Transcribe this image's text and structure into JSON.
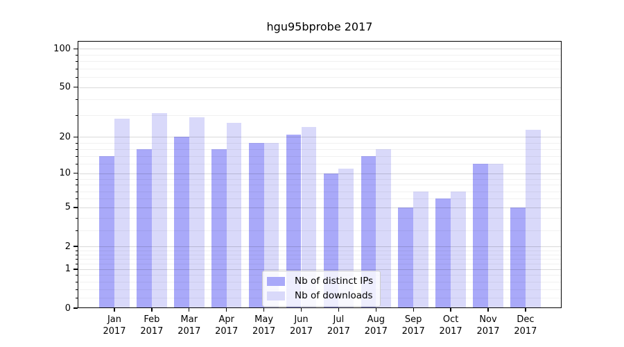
{
  "title": "hgu95bprobe 2017",
  "colors": {
    "distinct_ips": "#a9a9f9",
    "downloads": "#d9d9fa"
  },
  "legend": {
    "items": [
      {
        "label": "Nb of distinct IPs",
        "series": "distinct_ips"
      },
      {
        "label": "Nb of downloads",
        "series": "downloads"
      }
    ]
  },
  "chart_data": {
    "type": "bar",
    "title": "hgu95bprobe 2017",
    "year_label": "2017",
    "categories": [
      "Jan",
      "Feb",
      "Mar",
      "Apr",
      "May",
      "Jun",
      "Jul",
      "Aug",
      "Sep",
      "Oct",
      "Nov",
      "Dec"
    ],
    "series": [
      {
        "name": "Nb of distinct IPs",
        "color_key": "distinct_ips",
        "values": [
          14,
          16,
          20,
          16,
          18,
          21,
          10,
          14,
          5,
          6,
          12,
          5
        ]
      },
      {
        "name": "Nb of downloads",
        "color_key": "downloads",
        "values": [
          28,
          31,
          29,
          26,
          18,
          24,
          11,
          16,
          7,
          7,
          12,
          23
        ]
      }
    ],
    "xlabel": "",
    "ylabel": "",
    "y_scale": "log1p",
    "ylim": [
      0,
      115
    ],
    "grid": true,
    "legend_position": "lower-center",
    "y_axis": {
      "major_ticks": [
        0,
        1,
        2,
        5,
        10,
        20,
        50,
        100
      ],
      "minor_ticks": [
        0.2,
        0.4,
        0.6,
        0.8,
        1.2,
        1.4,
        1.6,
        1.8,
        3,
        4,
        6,
        7,
        8,
        9,
        12,
        14,
        16,
        18,
        30,
        40,
        60,
        70,
        80,
        90
      ]
    }
  }
}
